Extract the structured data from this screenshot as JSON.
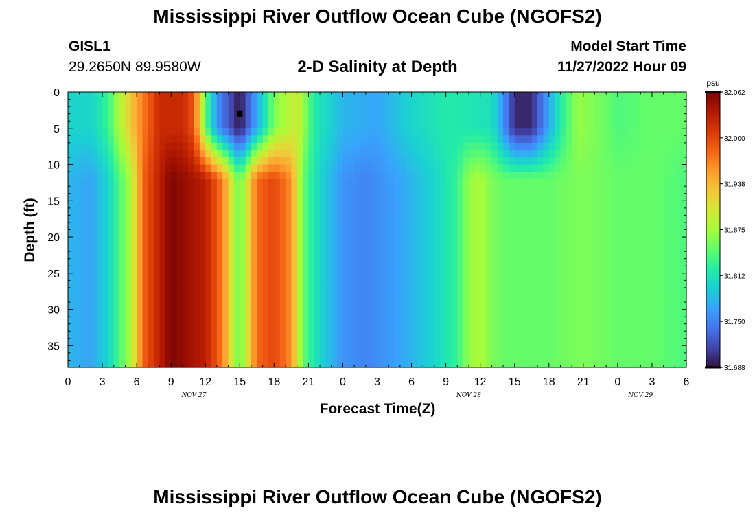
{
  "header": {
    "title": "Mississippi River Outflow Ocean Cube (NGOFS2)",
    "station_id": "GISL1",
    "station_location": "29.2650N  89.9580W",
    "subtitle": "2-D Salinity at Depth",
    "model_start_label": "Model Start Time",
    "model_start_value": "11/27/2022 Hour 09"
  },
  "footer": {
    "title": "Mississippi River Outflow Ocean Cube (NGOFS2)"
  },
  "chart_data": {
    "type": "heatmap",
    "title": "2-D Salinity at Depth",
    "xlabel": "Forecast Time(Z)",
    "ylabel": "Depth (ft)",
    "x_hours_range": [
      0,
      54
    ],
    "x_tick_labels": [
      "0",
      "3",
      "6",
      "9",
      "12",
      "15",
      "18",
      "21",
      "0",
      "3",
      "6",
      "9",
      "12",
      "15",
      "18",
      "21",
      "0",
      "3",
      "6"
    ],
    "date_labels": [
      {
        "label": "NOV 27",
        "hour": 11
      },
      {
        "label": "NOV 28",
        "hour": 35
      },
      {
        "label": "NOV 29",
        "hour": 50
      }
    ],
    "y_range": [
      0,
      38
    ],
    "y_tick_labels": [
      "0",
      "5",
      "10",
      "15",
      "20",
      "25",
      "30",
      "35"
    ],
    "colorbar": {
      "unit": "psu",
      "min": 31.688,
      "max": 32.062,
      "tick_labels": [
        "32.062",
        "32.000",
        "31.938",
        "31.875",
        "31.812",
        "31.750",
        "31.688"
      ],
      "colors": [
        "#30123b",
        "#4145ab",
        "#4675ed",
        "#39a2fc",
        "#1bcfd4",
        "#24eca6",
        "#61fc6c",
        "#a4fc3b",
        "#d1e834",
        "#f3c63a",
        "#fe9b2d",
        "#f36315",
        "#d93807",
        "#b11901",
        "#7a0403"
      ]
    },
    "marker": {
      "hour": 15,
      "depth_ft": 3
    },
    "surface_columns": [
      {
        "hour": 0,
        "salinity": 31.8
      },
      {
        "hour": 2,
        "salinity": 31.8
      },
      {
        "hour": 3.5,
        "salinity": 31.83
      },
      {
        "hour": 4.5,
        "salinity": 31.88
      },
      {
        "hour": 6,
        "salinity": 31.95
      },
      {
        "hour": 8,
        "salinity": 32.02
      },
      {
        "hour": 10,
        "salinity": 32.02
      },
      {
        "hour": 11,
        "salinity": 31.99
      },
      {
        "hour": 12,
        "salinity": 31.85
      },
      {
        "hour": 13,
        "salinity": 31.76
      },
      {
        "hour": 15,
        "salinity": 31.69
      },
      {
        "hour": 17,
        "salinity": 31.8
      },
      {
        "hour": 18,
        "salinity": 31.86
      },
      {
        "hour": 20,
        "salinity": 31.9
      },
      {
        "hour": 21.5,
        "salinity": 31.82
      },
      {
        "hour": 24,
        "salinity": 31.78
      },
      {
        "hour": 27,
        "salinity": 31.77
      },
      {
        "hour": 30,
        "salinity": 31.8
      },
      {
        "hour": 33,
        "salinity": 31.82
      },
      {
        "hour": 37,
        "salinity": 31.81
      },
      {
        "hour": 38,
        "salinity": 31.76
      },
      {
        "hour": 39,
        "salinity": 31.7
      },
      {
        "hour": 40.5,
        "salinity": 31.7
      },
      {
        "hour": 43,
        "salinity": 31.82
      },
      {
        "hour": 44.5,
        "salinity": 31.87
      },
      {
        "hour": 46,
        "salinity": 31.86
      },
      {
        "hour": 48,
        "salinity": 31.84
      },
      {
        "hour": 51,
        "salinity": 31.85
      },
      {
        "hour": 54,
        "salinity": 31.85
      }
    ],
    "deep_columns": [
      {
        "hour": 0,
        "salinity": 31.78
      },
      {
        "hour": 2,
        "salinity": 31.77
      },
      {
        "hour": 3.5,
        "salinity": 31.8
      },
      {
        "hour": 4.5,
        "salinity": 31.84
      },
      {
        "hour": 5.5,
        "salinity": 31.88
      },
      {
        "hour": 6.5,
        "salinity": 31.98
      },
      {
        "hour": 9,
        "salinity": 32.06
      },
      {
        "hour": 12,
        "salinity": 32.03
      },
      {
        "hour": 13.5,
        "salinity": 31.97
      },
      {
        "hour": 14.5,
        "salinity": 31.88
      },
      {
        "hour": 15,
        "salinity": 31.85
      },
      {
        "hour": 15.5,
        "salinity": 31.89
      },
      {
        "hour": 16.5,
        "salinity": 31.98
      },
      {
        "hour": 18,
        "salinity": 32.0
      },
      {
        "hour": 19.5,
        "salinity": 31.96
      },
      {
        "hour": 20.5,
        "salinity": 31.85
      },
      {
        "hour": 22,
        "salinity": 31.8
      },
      {
        "hour": 24,
        "salinity": 31.76
      },
      {
        "hour": 26,
        "salinity": 31.75
      },
      {
        "hour": 29,
        "salinity": 31.77
      },
      {
        "hour": 32,
        "salinity": 31.8
      },
      {
        "hour": 34,
        "salinity": 31.83
      },
      {
        "hour": 35,
        "salinity": 31.87
      },
      {
        "hour": 36,
        "salinity": 31.88
      },
      {
        "hour": 37,
        "salinity": 31.86
      },
      {
        "hour": 38,
        "salinity": 31.85
      },
      {
        "hour": 42,
        "salinity": 31.85
      },
      {
        "hour": 45,
        "salinity": 31.86
      },
      {
        "hour": 48,
        "salinity": 31.85
      },
      {
        "hour": 51,
        "salinity": 31.85
      },
      {
        "hour": 54,
        "salinity": 31.84
      }
    ]
  }
}
